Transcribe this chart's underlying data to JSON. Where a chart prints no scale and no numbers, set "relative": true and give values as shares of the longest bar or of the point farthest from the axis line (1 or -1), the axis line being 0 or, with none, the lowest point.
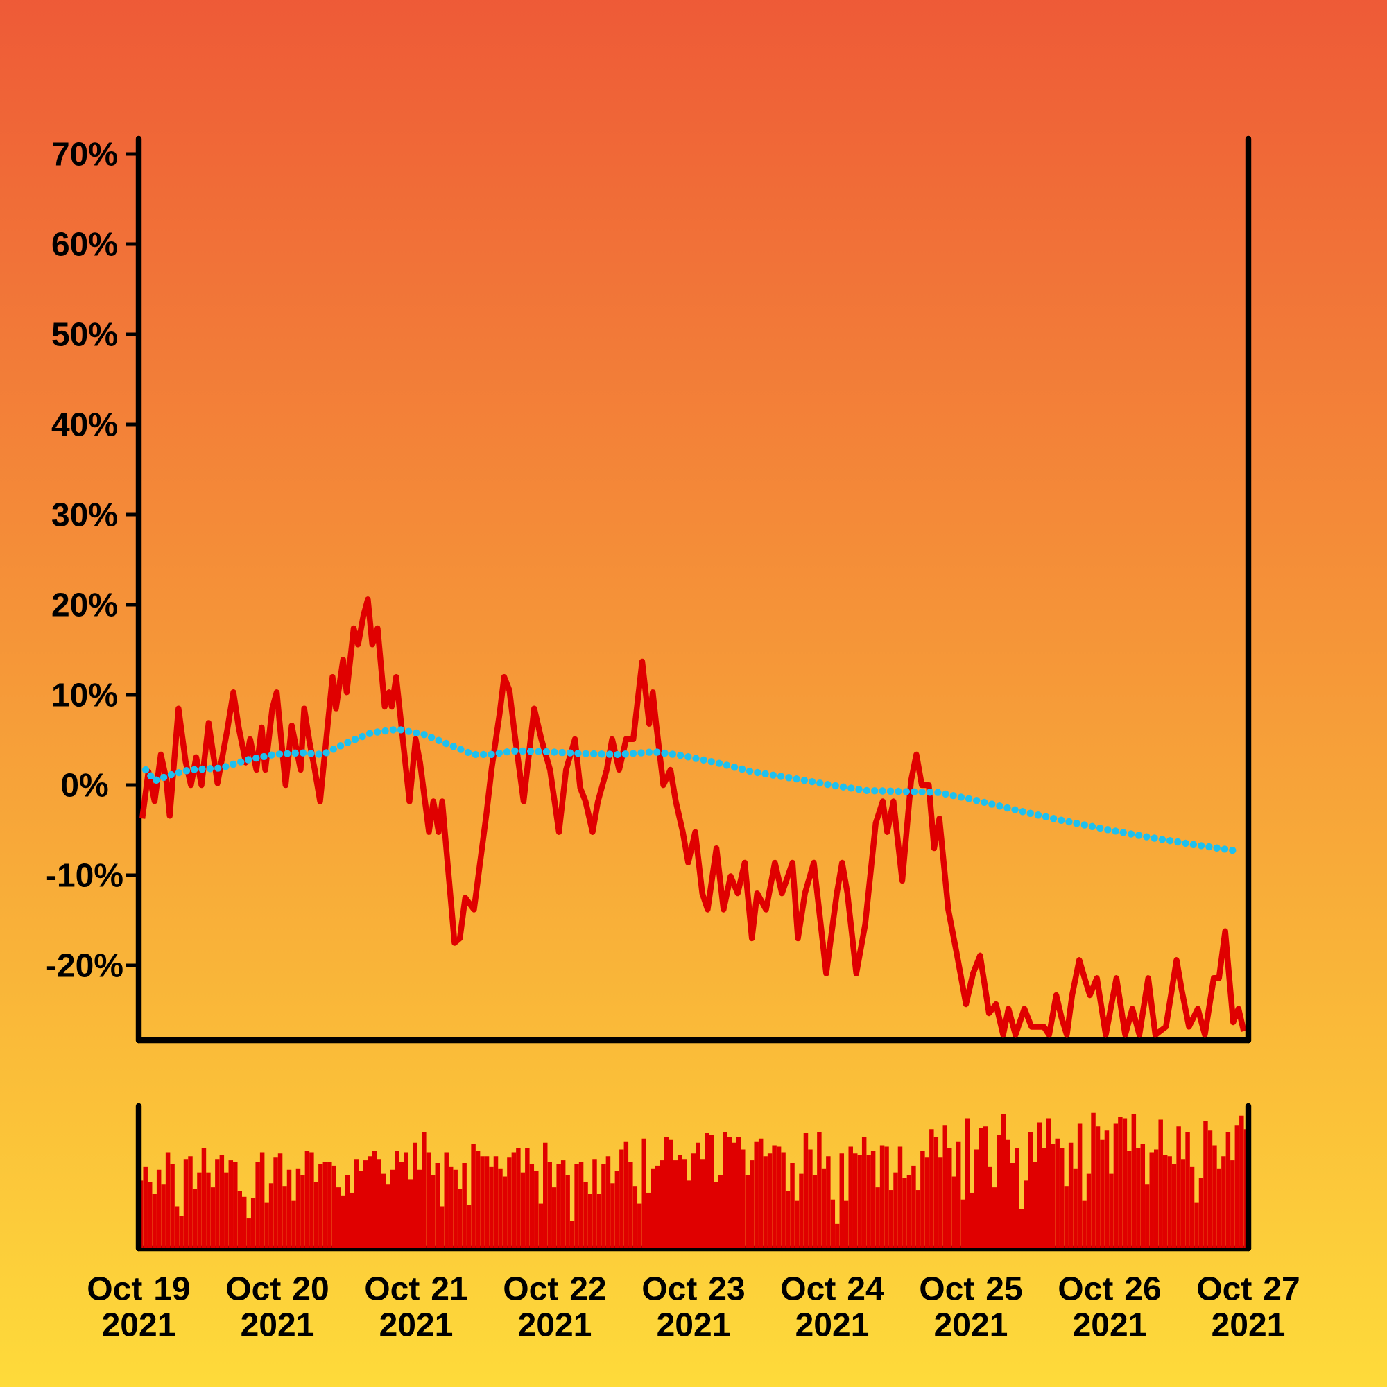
{
  "chart_data": [
    {
      "type": "line",
      "xlim": [
        "2021-10-19",
        "2021-10-27"
      ],
      "xticks": [
        {
          "value": "2021-10-19",
          "label": "Oct 19 2021"
        },
        {
          "value": "2021-10-20",
          "label": "Oct 20 2021"
        },
        {
          "value": "2021-10-21",
          "label": "Oct 21 2021"
        },
        {
          "value": "2021-10-22",
          "label": "Oct 22 2021"
        },
        {
          "value": "2021-10-23",
          "label": "Oct 23 2021"
        },
        {
          "value": "2021-10-24",
          "label": "Oct 24 2021"
        },
        {
          "value": "2021-10-25",
          "label": "Oct 25 2021"
        },
        {
          "value": "2021-10-26",
          "label": "Oct 26 2021"
        },
        {
          "value": "2021-10-27",
          "label": "Oct 27 2021"
        }
      ],
      "ylim": [
        -28.3,
        71.7
      ],
      "yticks": [
        {
          "value": -20,
          "label": "-20%"
        },
        {
          "value": -10,
          "label": "-10%"
        },
        {
          "value": 0,
          "label": "0%"
        },
        {
          "value": 10,
          "label": "10%"
        },
        {
          "value": 20,
          "label": "20%"
        },
        {
          "value": 30,
          "label": "30%"
        },
        {
          "value": 40,
          "label": "40%"
        },
        {
          "value": 50,
          "label": "50%"
        },
        {
          "value": 60,
          "label": "60%"
        },
        {
          "value": 70,
          "label": "70%"
        }
      ],
      "series": [
        {
          "color": "#e00000",
          "line_style": "solid",
          "x": [
            "2021-10-19T00:37",
            "2021-10-19T01:41",
            "2021-10-19T02:45",
            "2021-10-19T03:50",
            "2021-10-19T04:45",
            "2021-10-19T05:22",
            "2021-10-19T06:53",
            "2021-10-19T08:07",
            "2021-10-19T09:02",
            "2021-10-19T09:57",
            "2021-10-19T10:52",
            "2021-10-19T12:06",
            "2021-10-19T13:38",
            "2021-10-19T15:19",
            "2021-10-19T16:23",
            "2021-10-19T17:18",
            "2021-10-19T18:32",
            "2021-10-19T19:17",
            "2021-10-19T20:22",
            "2021-10-19T21:17",
            "2021-10-19T21:54",
            "2021-10-19T23:07",
            "2021-10-19T23:53",
            "2021-10-20T01:25",
            "2021-10-20T02:29",
            "2021-10-20T04:01",
            "2021-10-20T04:38",
            "2021-10-20T05:33",
            "2021-10-20T06:28",
            "2021-10-20T07:23",
            "2021-10-20T09:32",
            "2021-10-20T10:08",
            "2021-10-20T11:22",
            "2021-10-20T11:59",
            "2021-10-20T13:12",
            "2021-10-20T13:58",
            "2021-10-20T14:53",
            "2021-10-20T15:39",
            "2021-10-20T16:25",
            "2021-10-20T17:20",
            "2021-10-20T18:34",
            "2021-10-20T19:20",
            "2021-10-20T19:47",
            "2021-10-20T20:33",
            "2021-10-20T22:51",
            "2021-10-20T23:55",
            "2021-10-21T00:41",
            "2021-10-21T02:13",
            "2021-10-21T02:59",
            "2021-10-21T03:54",
            "2021-10-21T04:31",
            "2021-10-21T06:39",
            "2021-10-21T07:34",
            "2021-10-21T08:30",
            "2021-10-21T10:01",
            "2021-10-21T12:10",
            "2021-10-21T13:05",
            "2021-10-21T14:28",
            "2021-10-21T15:14",
            "2021-10-21T16:09",
            "2021-10-21T17:04",
            "2021-10-21T18:36",
            "2021-10-21T19:49",
            "2021-10-21T20:26",
            "2021-10-21T21:40",
            "2021-10-21T23:11",
            "2021-10-22T00:43",
            "2021-10-22T01:57",
            "2021-10-22T03:29",
            "2021-10-22T04:24",
            "2021-10-22T05:19",
            "2021-10-22T06:32",
            "2021-10-22T07:28",
            "2021-10-22T08:59",
            "2021-10-22T09:55",
            "2021-10-22T11:08",
            "2021-10-22T12:21",
            "2021-10-22T13:35",
            "2021-10-22T15:07",
            "2021-10-22T16:20",
            "2021-10-22T16:57",
            "2021-10-22T17:34",
            "2021-10-22T18:47",
            "2021-10-22T20:01",
            "2021-10-22T20:56",
            "2021-10-22T22:09",
            "2021-10-22T23:05",
            "2021-10-23T00:18",
            "2021-10-23T01:31",
            "2021-10-23T02:27",
            "2021-10-23T03:58",
            "2021-10-23T05:12",
            "2021-10-23T06:25",
            "2021-10-23T07:39",
            "2021-10-23T08:52",
            "2021-10-23T10:06",
            "2021-10-23T11:01",
            "2021-10-23T12:33",
            "2021-10-23T14:05",
            "2021-10-23T15:18",
            "2021-10-23T17:08",
            "2021-10-23T18:04",
            "2021-10-23T19:17",
            "2021-10-23T20:49",
            "2021-10-23T22:58",
            "2021-10-24T00:48",
            "2021-10-24T01:43",
            "2021-10-24T02:38",
            "2021-10-24T04:10",
            "2021-10-24T05:42",
            "2021-10-24T07:32",
            "2021-10-24T08:45",
            "2021-10-24T09:31",
            "2021-10-24T10:36",
            "2021-10-24T12:07",
            "2021-10-24T13:39",
            "2021-10-24T14:34",
            "2021-10-24T15:30",
            "2021-10-24T16:43",
            "2021-10-24T17:38",
            "2021-10-24T18:33",
            "2021-10-24T20:05",
            "2021-10-24T21:37",
            "2021-10-24T23:09",
            "2021-10-25T00:22",
            "2021-10-25T01:36",
            "2021-10-25T03:08",
            "2021-10-25T04:21",
            "2021-10-25T05:35",
            "2021-10-25T06:30",
            "2021-10-25T07:43",
            "2021-10-25T09:15",
            "2021-10-25T10:29",
            "2021-10-25T12:37",
            "2021-10-25T13:32",
            "2021-10-25T14:46",
            "2021-10-25T15:41",
            "2021-10-25T16:36",
            "2021-10-25T17:31",
            "2021-10-25T18:45",
            "2021-10-25T19:40",
            "2021-10-25T20:35",
            "2021-10-25T21:48",
            "2021-10-25T23:20",
            "2021-10-26T01:11",
            "2021-10-26T02:42",
            "2021-10-26T03:56",
            "2021-10-26T05:09",
            "2021-10-26T06:41",
            "2021-10-26T07:55",
            "2021-10-26T09:45",
            "2021-10-26T11:35",
            "2021-10-26T12:30",
            "2021-10-26T13:44",
            "2021-10-26T15:16",
            "2021-10-26T16:29",
            "2021-10-26T18:01",
            "2021-10-26T18:56",
            "2021-10-26T20:00",
            "2021-10-26T21:23",
            "2021-10-26T22:18",
            "2021-10-26T23:13"
          ],
          "values": [
            -3.7,
            1.5,
            -1.8,
            3.4,
            0.7,
            -3.4,
            8.5,
            2.6,
            0,
            3.1,
            0,
            6.9,
            0.2,
            6.1,
            10.3,
            6.4,
            2.5,
            5.1,
            1.7,
            6.4,
            1.7,
            8.5,
            10.3,
            0,
            6.6,
            1.7,
            8.5,
            4.8,
            1.7,
            -1.8,
            12,
            8.5,
            13.9,
            10.3,
            17.4,
            15.6,
            18.8,
            20.6,
            15.6,
            17.4,
            8.7,
            10.3,
            8.7,
            12,
            -1.8,
            5.1,
            2.5,
            -5.2,
            -1.8,
            -5.2,
            -1.8,
            -17.5,
            -17,
            -12.5,
            -13.8,
            -3.2,
            1.9,
            8,
            12,
            10.5,
            5.6,
            -1.8,
            5.1,
            8.5,
            5.1,
            1.7,
            -5.2,
            1.7,
            5.1,
            -0.3,
            -1.8,
            -5.2,
            -1.8,
            1.7,
            5.1,
            1.7,
            5.1,
            5.1,
            13.7,
            6.8,
            10.3,
            6.6,
            0,
            1.7,
            -1.8,
            -5.2,
            -8.6,
            -5.2,
            -12,
            -13.8,
            -7,
            -13.8,
            -10.1,
            -12,
            -8.6,
            -17,
            -12,
            -13.8,
            -8.6,
            -12,
            -8.6,
            -17,
            -12,
            -8.6,
            -20.9,
            -12,
            -8.6,
            -12,
            -20.9,
            -15.5,
            -4.2,
            -1.8,
            -5.2,
            -1.8,
            -10.6,
            0.5,
            3.4,
            0,
            0,
            -7,
            -3.7,
            -13.8,
            -18.9,
            -24.3,
            -20.9,
            -18.9,
            -25.3,
            -24.3,
            -27.7,
            -24.8,
            -27.7,
            -24.8,
            -26.8,
            -26.8,
            -27.7,
            -23.3,
            -25.8,
            -27.7,
            -23.3,
            -19.4,
            -21.4,
            -23.3,
            -21.4,
            -27.7,
            -21.4,
            -27.7,
            -24.8,
            -27.7,
            -21.4,
            -27.7,
            -26.8,
            -19.4,
            -22.8,
            -26.8,
            -24.8,
            -27.7,
            -21.4,
            -21.4,
            -16.2,
            -26.3,
            -24.8,
            -27.3
          ]
        },
        {
          "color": "#1ec0ef",
          "line_style": "dotted",
          "x": [
            "2021-10-19T01:13",
            "2021-10-19T02:45",
            "2021-10-19T05:49",
            "2021-10-19T08:53",
            "2021-10-19T14:14",
            "2021-10-19T18:50",
            "2021-10-19T23:25",
            "2021-10-20T04:01",
            "2021-10-20T07:51",
            "2021-10-20T11:40",
            "2021-10-20T16:16",
            "2021-10-20T20:51",
            "2021-10-21T01:27",
            "2021-10-21T06:03",
            "2021-10-21T09:52",
            "2021-10-21T12:56",
            "2021-10-21T16:46",
            "2021-10-21T22:53",
            "2021-10-22T05:01",
            "2021-10-22T11:08",
            "2021-10-22T17:15",
            "2021-10-22T21:51",
            "2021-10-23T03:58",
            "2021-10-23T10:06",
            "2021-10-23T17:45",
            "2021-10-23T23:53",
            "2021-10-24T06:00",
            "2021-10-24T12:07",
            "2021-10-24T18:15",
            "2021-10-25T00:22",
            "2021-10-25T08:02",
            "2021-10-25T15:41",
            "2021-10-25T23:20",
            "2021-10-26T07:00",
            "2021-10-26T14:39",
            "2021-10-26T22:00"
          ],
          "values": [
            1.7,
            0.5,
            1.2,
            1.7,
            1.9,
            2.8,
            3.4,
            3.6,
            3.4,
            4.6,
            5.8,
            6.2,
            5.6,
            4.4,
            3.4,
            3.4,
            3.8,
            3.7,
            3.5,
            3.4,
            3.7,
            3.3,
            2.5,
            1.5,
            0.7,
            0,
            -0.6,
            -0.7,
            -0.8,
            -1.6,
            -2.8,
            -3.9,
            -4.9,
            -5.8,
            -6.6,
            -7.3
          ]
        }
      ]
    },
    {
      "type": "bar",
      "relative": true,
      "color": "#e00000",
      "categories": [
        null,
        null,
        null,
        null,
        null,
        null,
        null,
        null,
        null,
        null,
        null,
        null,
        null,
        null,
        null,
        null,
        null,
        null,
        null,
        null,
        null,
        null,
        null,
        null,
        null,
        null,
        null,
        null,
        null,
        null,
        null,
        null,
        null,
        null,
        null,
        null,
        null,
        null,
        null,
        null,
        null,
        null,
        null,
        null,
        null,
        null,
        null,
        null,
        null,
        null,
        null,
        null,
        null,
        null,
        null,
        null,
        null,
        null,
        null,
        null,
        null,
        null,
        null,
        null,
        null,
        null,
        null,
        null,
        null,
        null,
        null,
        null,
        null,
        null,
        null,
        null,
        null,
        null,
        null,
        null,
        null,
        null,
        null,
        null,
        null,
        null,
        null,
        null,
        null,
        null,
        null,
        null,
        null,
        null,
        null,
        null,
        null,
        null,
        null,
        null,
        null,
        null,
        null,
        null,
        null,
        null,
        null,
        null,
        null,
        null,
        null,
        null,
        null,
        null,
        null,
        null,
        null,
        null,
        null,
        null,
        null,
        null,
        null,
        null,
        null,
        null,
        null,
        null,
        null,
        null,
        null,
        null,
        null,
        null,
        null,
        null,
        null,
        null,
        null,
        null,
        null,
        null,
        null,
        null,
        null,
        null,
        null,
        null,
        null,
        null,
        null,
        null,
        null,
        null,
        null,
        null,
        null,
        null,
        null,
        null,
        null,
        null,
        null,
        null,
        null,
        null,
        null,
        null,
        null,
        null,
        null,
        null,
        null,
        null,
        null,
        null,
        null,
        null,
        null,
        null,
        null,
        null,
        null,
        null,
        null,
        null,
        null,
        null,
        null,
        null,
        null,
        null,
        null,
        null,
        null,
        null,
        null,
        null,
        null,
        null,
        null,
        null,
        null,
        null,
        null,
        null,
        null,
        null,
        null,
        null,
        null,
        null,
        null,
        null,
        null,
        null,
        null,
        null,
        null,
        null,
        null,
        null,
        null,
        null,
        null,
        null,
        null,
        null,
        null,
        null,
        null,
        null,
        null,
        null,
        null,
        null,
        null,
        null,
        null,
        null,
        null,
        null,
        null,
        null,
        null,
        null,
        null
      ],
      "values": [
        0.5,
        0.6,
        0.49,
        0.4,
        0.58,
        0.47,
        0.71,
        0.62,
        0.31,
        0.24,
        0.66,
        0.68,
        0.44,
        0.56,
        0.74,
        0.56,
        0.45,
        0.66,
        0.69,
        0.56,
        0.65,
        0.64,
        0.42,
        0.38,
        0.22,
        0.37,
        0.64,
        0.71,
        0.34,
        0.48,
        0.67,
        0.7,
        0.46,
        0.58,
        0.35,
        0.59,
        0.54,
        0.72,
        0.71,
        0.49,
        0.62,
        0.64,
        0.64,
        0.61,
        0.45,
        0.39,
        0.54,
        0.41,
        0.66,
        0.57,
        0.65,
        0.68,
        0.72,
        0.66,
        0.55,
        0.47,
        0.58,
        0.72,
        0.64,
        0.71,
        0.51,
        0.78,
        0.58,
        0.86,
        0.71,
        0.54,
        0.63,
        0.31,
        0.71,
        0.6,
        0.58,
        0.44,
        0.63,
        0.32,
        0.77,
        0.72,
        0.68,
        0.68,
        0.6,
        0.68,
        0.59,
        0.53,
        0.67,
        0.71,
        0.74,
        0.56,
        0.74,
        0.62,
        0.57,
        0.33,
        0.78,
        0.64,
        0.45,
        0.62,
        0.65,
        0.54,
        0.2,
        0.62,
        0.64,
        0.49,
        0.4,
        0.66,
        0.4,
        0.62,
        0.68,
        0.48,
        0.57,
        0.73,
        0.79,
        0.64,
        0.46,
        0.33,
        0.81,
        0.41,
        0.59,
        0.61,
        0.65,
        0.82,
        0.8,
        0.65,
        0.69,
        0.66,
        0.5,
        0.7,
        0.78,
        0.66,
        0.85,
        0.84,
        0.49,
        0.54,
        0.86,
        0.82,
        0.78,
        0.82,
        0.73,
        0.54,
        0.65,
        0.79,
        0.81,
        0.68,
        0.7,
        0.76,
        0.75,
        0.71,
        0.42,
        0.63,
        0.35,
        0.55,
        0.85,
        0.73,
        0.54,
        0.86,
        0.59,
        0.68,
        0.36,
        0.18,
        0.7,
        0.35,
        0.75,
        0.7,
        0.69,
        0.82,
        0.69,
        0.72,
        0.45,
        0.76,
        0.75,
        0.43,
        0.56,
        0.75,
        0.52,
        0.54,
        0.61,
        0.43,
        0.72,
        0.67,
        0.88,
        0.82,
        0.67,
        0.91,
        0.74,
        0.53,
        0.79,
        0.36,
        0.96,
        0.41,
        0.73,
        0.89,
        0.9,
        0.6,
        0.45,
        0.84,
        0.99,
        0.8,
        0.63,
        0.74,
        0.29,
        0.5,
        0.86,
        0.64,
        0.93,
        0.74,
        0.96,
        0.77,
        0.81,
        0.74,
        0.46,
        0.78,
        0.59,
        0.92,
        0.35,
        0.55,
        1.0,
        0.9,
        0.8,
        0.87,
        0.55,
        0.92,
        0.97,
        0.96,
        0.72,
        0.99,
        0.74,
        0.77,
        0.47,
        0.71,
        0.73,
        0.95,
        0.69,
        0.68,
        0.62,
        0.9,
        0.66,
        0.86,
        0.6,
        0.34,
        0.52,
        0.94,
        0.87,
        0.76,
        0.59,
        0.68,
        0.86,
        0.65,
        0.91,
        0.98,
        0.88
      ]
    }
  ]
}
